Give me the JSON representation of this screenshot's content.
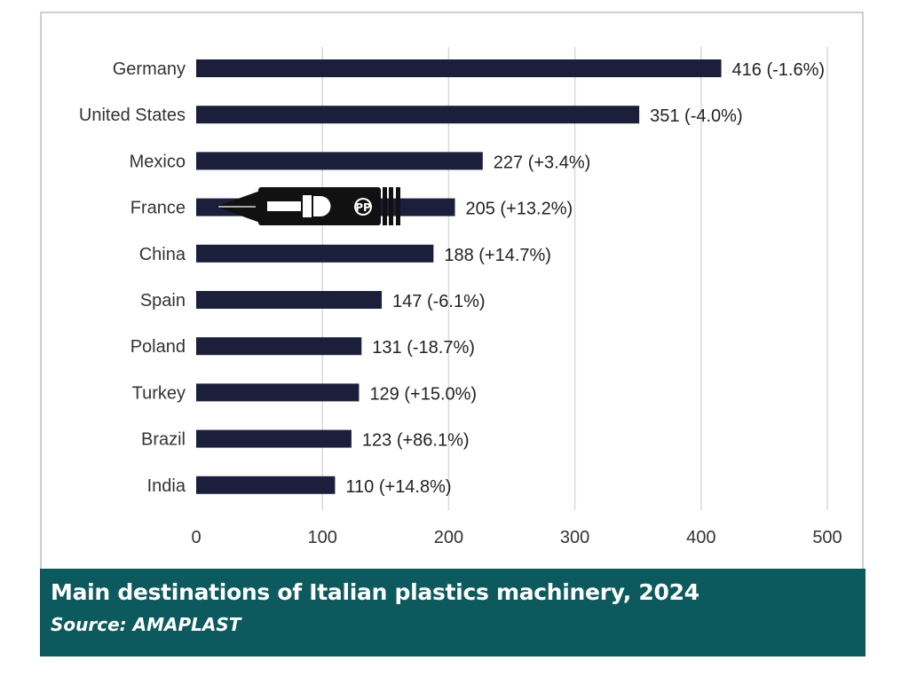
{
  "chart_data": {
    "type": "bar",
    "orientation": "horizontal",
    "categories": [
      "Germany",
      "United States",
      "Mexico",
      "France",
      "China",
      "Spain",
      "Poland",
      "Turkey",
      "Brazil",
      "India"
    ],
    "values": [
      416,
      351,
      227,
      205,
      188,
      147,
      131,
      129,
      123,
      110
    ],
    "changes": [
      "-1.6%",
      "-4.0%",
      "+3.4%",
      "+13.2%",
      "+14.7%",
      "-6.1%",
      "-18.7%",
      "+15.0%",
      "+86.1%",
      "+14.8%"
    ],
    "data_labels": [
      "416 (-1.6%)",
      "351 (-4.0%)",
      "227 (+3.4%)",
      "205 (+13.2%)",
      "188 (+14.7%)",
      "147 (-6.1%)",
      "131 (-18.7%)",
      "129 (+15.0%)",
      "123 (+86.1%)",
      "110 (+14.8%)"
    ],
    "x_ticks": [
      "0",
      "100",
      "200",
      "300",
      "400",
      "500"
    ],
    "xlim": [
      0,
      500
    ],
    "grid": "vertical",
    "bar_color": "#1b1f3b",
    "grid_color": "#d9d9d9"
  },
  "caption": {
    "title": "Main destinations of Italian plastics machinery, 2024",
    "source": "Source: AMAPLAST",
    "background": "#0c5a5e"
  },
  "watermark": {
    "icon": "pen-nib-logo-icon",
    "letters": "PP"
  }
}
